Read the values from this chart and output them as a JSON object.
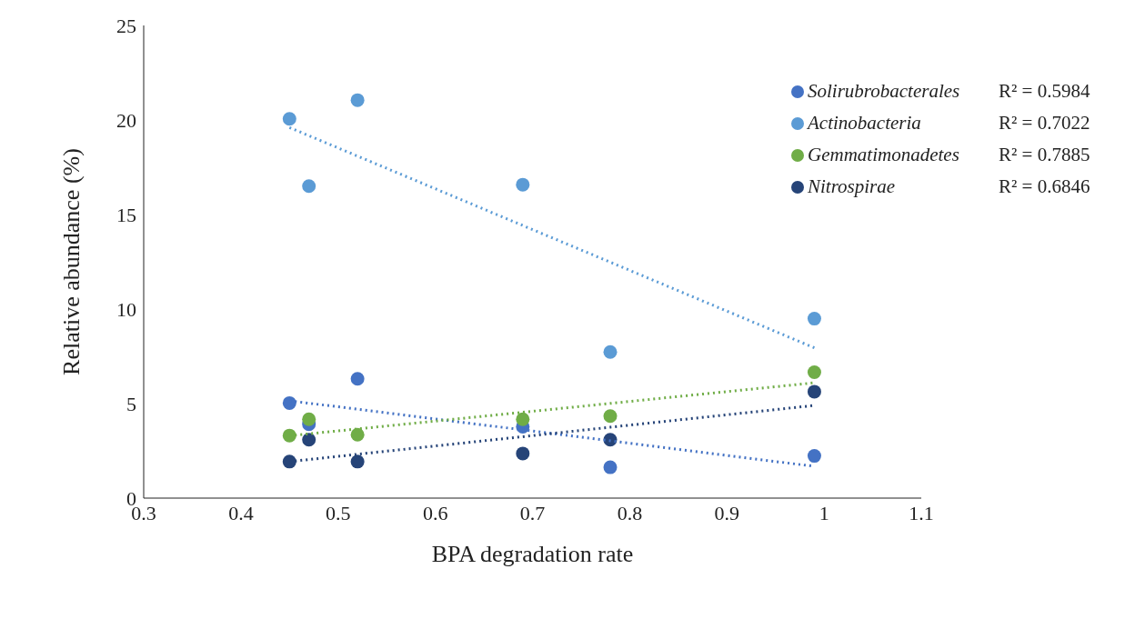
{
  "chart_data": {
    "type": "scatter",
    "xlabel": "BPA degradation rate",
    "ylabel": "Relative abundance (%)",
    "xlim": [
      0.3,
      1.1
    ],
    "xticks": [
      0.3,
      0.4,
      0.5,
      0.6,
      0.7,
      0.8,
      0.9,
      1,
      1.1
    ],
    "ylim": [
      0,
      25
    ],
    "yticks": [
      0,
      5,
      10,
      15,
      20,
      25
    ],
    "grid": false,
    "legend": "right",
    "marker": "circle",
    "x": [
      0.45,
      0.47,
      0.52,
      0.69,
      0.78,
      0.99
    ],
    "series": [
      {
        "name": "Solirubrobacterales",
        "color": "#4472c4",
        "values": [
          5.03,
          3.91,
          6.31,
          3.78,
          1.63,
          2.23
        ]
      },
      {
        "name": "Actinobacteria",
        "color": "#5b9bd5",
        "values": [
          20.06,
          16.5,
          21.05,
          16.58,
          7.73,
          9.49
        ]
      },
      {
        "name": "Gemmatimonadetes",
        "color": "#70ad47",
        "values": [
          3.31,
          4.17,
          3.35,
          4.17,
          4.34,
          6.66
        ]
      },
      {
        "name": "Nitrospirae",
        "color": "#264478",
        "values": [
          1.93,
          3.09,
          1.93,
          2.36,
          3.09,
          5.63
        ]
      },
      {
        "type": "line",
        "line_style": "dotted",
        "marker": "none",
        "color": "#4472c4",
        "values": [
          5.15,
          5.02,
          4.7,
          3.61,
          3.03,
          1.68
        ]
      },
      {
        "type": "line",
        "line_style": "dotted",
        "marker": "none",
        "color": "#5b9bd5",
        "values": [
          19.6,
          19.17,
          18.09,
          14.42,
          12.48,
          7.95
        ]
      },
      {
        "type": "line",
        "line_style": "dotted",
        "marker": "none",
        "color": "#70ad47",
        "values": [
          3.3,
          3.4,
          3.66,
          4.54,
          5.01,
          6.1
        ]
      },
      {
        "type": "line",
        "line_style": "dotted",
        "marker": "none",
        "color": "#264478",
        "values": [
          1.93,
          2.04,
          2.32,
          3.25,
          3.75,
          4.9
        ]
      }
    ],
    "annotations": [
      "R² = 0.5984",
      "R² = 0.7022",
      "R² = 0.7885",
      "R² = 0.6846"
    ]
  }
}
